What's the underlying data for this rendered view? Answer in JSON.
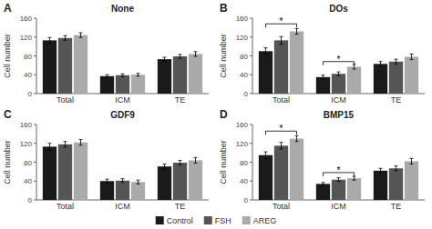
{
  "chart_data": [
    {
      "type": "bar",
      "panel_label": "A",
      "title": "None",
      "y_label": "Cell number",
      "categories": [
        "Total",
        "ICM",
        "TE"
      ],
      "series": [
        {
          "name": "Control",
          "color": "#1a1a1a",
          "values": [
            113,
            37,
            73
          ],
          "errors": [
            6,
            3,
            4
          ]
        },
        {
          "name": "FSH",
          "color": "#555555",
          "values": [
            118,
            39,
            79
          ],
          "errors": [
            5,
            3,
            4
          ]
        },
        {
          "name": "AREG",
          "color": "#aaaaaa",
          "values": [
            124,
            40,
            84
          ],
          "errors": [
            5,
            3,
            5
          ]
        }
      ],
      "annotations": [],
      "ylim": [
        0,
        160
      ],
      "yticks": [
        0,
        40,
        80,
        120,
        160
      ],
      "legend": "bottom"
    },
    {
      "type": "bar",
      "panel_label": "B",
      "title": "DOs",
      "y_label": "Cell number",
      "categories": [
        "Total",
        "ICM",
        "TE"
      ],
      "series": [
        {
          "name": "Control",
          "color": "#1a1a1a",
          "values": [
            90,
            35,
            63
          ],
          "errors": [
            7,
            4,
            5
          ]
        },
        {
          "name": "FSH",
          "color": "#555555",
          "values": [
            113,
            42,
            68
          ],
          "errors": [
            8,
            4,
            5
          ]
        },
        {
          "name": "AREG",
          "color": "#aaaaaa",
          "values": [
            132,
            57,
            78
          ],
          "errors": [
            6,
            5,
            6
          ]
        }
      ],
      "annotations": [
        {
          "text": "*",
          "y": 148,
          "from": {
            "category": 0,
            "series": 0
          },
          "to": {
            "category": 0,
            "series": 2
          }
        },
        {
          "text": "*",
          "y": 68,
          "from": {
            "category": 1,
            "series": 0
          },
          "to": {
            "category": 1,
            "series": 2
          }
        }
      ],
      "ylim": [
        0,
        160
      ],
      "yticks": [
        0,
        40,
        80,
        120,
        160
      ]
    },
    {
      "type": "bar",
      "panel_label": "C",
      "title": "GDF9",
      "y_label": "Cell number",
      "categories": [
        "Total",
        "ICM",
        "TE"
      ],
      "series": [
        {
          "name": "Control",
          "color": "#1a1a1a",
          "values": [
            113,
            40,
            71
          ],
          "errors": [
            7,
            4,
            5
          ]
        },
        {
          "name": "FSH",
          "color": "#555555",
          "values": [
            118,
            41,
            79
          ],
          "errors": [
            6,
            4,
            5
          ]
        },
        {
          "name": "AREG",
          "color": "#aaaaaa",
          "values": [
            122,
            38,
            84
          ],
          "errors": [
            6,
            4,
            6
          ]
        }
      ],
      "annotations": [],
      "ylim": [
        0,
        160
      ],
      "yticks": [
        0,
        40,
        80,
        120,
        160
      ]
    },
    {
      "type": "bar",
      "panel_label": "D",
      "title": "BMP15",
      "y_label": "Cell number",
      "categories": [
        "Total",
        "ICM",
        "TE"
      ],
      "series": [
        {
          "name": "Control",
          "color": "#1a1a1a",
          "values": [
            95,
            34,
            62
          ],
          "errors": [
            7,
            3,
            5
          ]
        },
        {
          "name": "FSH",
          "color": "#555555",
          "values": [
            115,
            43,
            67
          ],
          "errors": [
            7,
            4,
            5
          ]
        },
        {
          "name": "AREG",
          "color": "#aaaaaa",
          "values": [
            130,
            46,
            82
          ],
          "errors": [
            6,
            4,
            6
          ]
        }
      ],
      "annotations": [
        {
          "text": "*",
          "y": 146,
          "from": {
            "category": 0,
            "series": 0
          },
          "to": {
            "category": 0,
            "series": 2
          }
        },
        {
          "text": "*",
          "y": 58,
          "from": {
            "category": 1,
            "series": 0
          },
          "to": {
            "category": 1,
            "series": 2
          }
        }
      ],
      "ylim": [
        0,
        160
      ],
      "yticks": [
        0,
        40,
        80,
        120,
        160
      ]
    }
  ]
}
